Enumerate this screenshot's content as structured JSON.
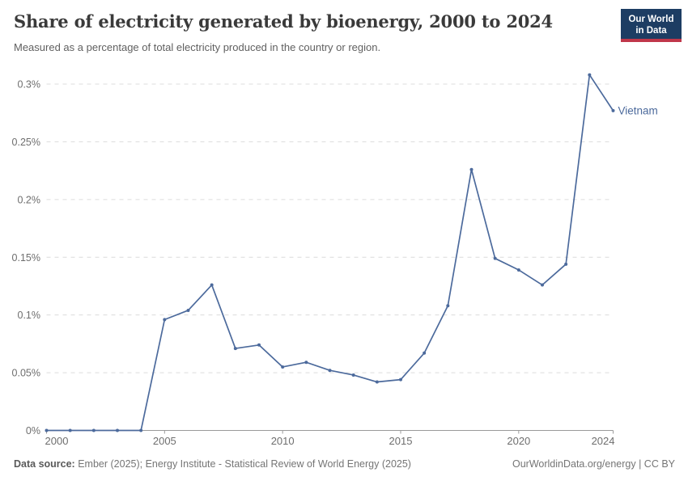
{
  "header": {
    "title": "Share of electricity generated by bioenergy, 2000 to 2024",
    "subtitle": "Measured as a percentage of total electricity produced in the country or region.",
    "logo": {
      "line1": "Our World",
      "line2": "in Data",
      "bg_color": "#1d3d63",
      "accent_color": "#c0374a"
    }
  },
  "chart_data": {
    "type": "line",
    "title": "Share of electricity generated by bioenergy, 2000 to 2024",
    "xlabel": "",
    "ylabel": "",
    "unit": "%",
    "grid": "horizontal-dashed",
    "legend_position": "end-of-line-label",
    "xlim": [
      2000,
      2024
    ],
    "ylim": [
      0,
      0.3
    ],
    "x_ticks": [
      2000,
      2005,
      2010,
      2015,
      2020,
      2024
    ],
    "y_ticks": [
      {
        "value": 0,
        "label": "0%"
      },
      {
        "value": 0.05,
        "label": "0.05%"
      },
      {
        "value": 0.1,
        "label": "0.1%"
      },
      {
        "value": 0.15,
        "label": "0.15%"
      },
      {
        "value": 0.2,
        "label": "0.2%"
      },
      {
        "value": 0.25,
        "label": "0.25%"
      },
      {
        "value": 0.3,
        "label": "0.3%"
      }
    ],
    "x": [
      2000,
      2001,
      2002,
      2003,
      2004,
      2005,
      2006,
      2007,
      2008,
      2009,
      2010,
      2011,
      2012,
      2013,
      2014,
      2015,
      2016,
      2017,
      2018,
      2019,
      2020,
      2021,
      2022,
      2023,
      2024
    ],
    "series": [
      {
        "name": "Vietnam",
        "color": "#4c6a9c",
        "values": [
          0,
          0,
          0,
          0,
          0,
          0.096,
          0.104,
          0.126,
          0.071,
          0.074,
          0.055,
          0.059,
          0.052,
          0.048,
          0.042,
          0.044,
          0.067,
          0.108,
          0.226,
          0.149,
          0.139,
          0.126,
          0.144,
          0.308,
          0.277
        ]
      }
    ]
  },
  "footer": {
    "datasource_label": "Data source:",
    "datasource_text": "Ember (2025); Energy Institute - Statistical Review of World Energy (2025)",
    "link_text": "OurWorldinData.org/energy | CC BY"
  }
}
